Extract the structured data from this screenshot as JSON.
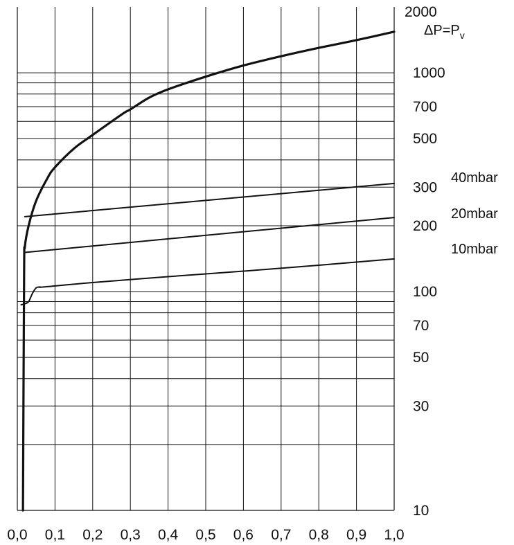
{
  "chart_data": {
    "type": "line",
    "xlim": [
      0,
      1
    ],
    "ylim": [
      10,
      2000
    ],
    "y_scale": "log",
    "grid": true,
    "x_ticks": [
      "0,0",
      "0,1",
      "0,2",
      "0,3",
      "0,4",
      "0,5",
      "0,6",
      "0,7",
      "0,8",
      "0,9",
      "1,0"
    ],
    "x_tick_values": [
      0,
      0.1,
      0.2,
      0.3,
      0.4,
      0.5,
      0.6,
      0.7,
      0.8,
      0.9,
      1.0
    ],
    "y_ticks": [
      "2000",
      "1000",
      "700",
      "500",
      "300",
      "200",
      "100",
      "70",
      "50",
      "30",
      "10"
    ],
    "y_tick_values": [
      2000,
      1000,
      700,
      500,
      300,
      200,
      100,
      70,
      50,
      30,
      10
    ],
    "y_gridlines": [
      20,
      30,
      40,
      50,
      60,
      70,
      80,
      90,
      100,
      200,
      300,
      400,
      500,
      600,
      700,
      800,
      900,
      1000
    ],
    "series": [
      {
        "name": "ΔP=Pv",
        "stroke": "heavy",
        "x": [
          0.015,
          0.018,
          0.02,
          0.03,
          0.05,
          0.08,
          0.1,
          0.15,
          0.2,
          0.28,
          0.3,
          0.35,
          0.4,
          0.5,
          0.6,
          0.7,
          0.8,
          0.9,
          1.0
        ],
        "y": [
          10,
          120,
          160,
          200,
          260,
          330,
          370,
          450,
          520,
          650,
          680,
          770,
          840,
          960,
          1080,
          1190,
          1300,
          1410,
          1540
        ]
      },
      {
        "name": "40mbar",
        "stroke": "normal",
        "x": [
          0.02,
          1.0
        ],
        "y": [
          220,
          312
        ]
      },
      {
        "name": "20mbar",
        "stroke": "normal",
        "x": [
          0.02,
          1.0
        ],
        "y": [
          151,
          218
        ]
      },
      {
        "name": "10mbar",
        "stroke": "normal",
        "x": [
          0.01,
          0.02,
          0.03,
          0.04,
          0.05,
          0.06,
          0.07,
          0.2,
          0.4,
          0.6,
          0.8,
          1.0
        ],
        "y": [
          87,
          88,
          90,
          98,
          104,
          105,
          105,
          110,
          117,
          124,
          132,
          141
        ]
      }
    ],
    "series_labels": [
      "ΔP=P",
      "40mbar",
      "20mbar",
      "10mbar"
    ],
    "series_label_subscript": "v"
  },
  "colors": {
    "line": "#111111",
    "grid": "#111111",
    "background": "#ffffff"
  }
}
